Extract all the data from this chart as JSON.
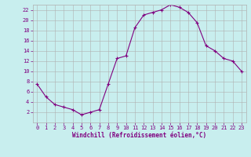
{
  "x": [
    0,
    1,
    2,
    3,
    4,
    5,
    6,
    7,
    8,
    9,
    10,
    11,
    12,
    13,
    14,
    15,
    16,
    17,
    18,
    19,
    20,
    21,
    22,
    23
  ],
  "y": [
    7.5,
    5.0,
    3.5,
    3.0,
    2.5,
    1.5,
    2.0,
    2.5,
    7.5,
    12.5,
    13.0,
    18.5,
    21.0,
    21.5,
    22.0,
    23.0,
    22.5,
    21.5,
    19.5,
    15.0,
    14.0,
    12.5,
    12.0,
    10.0
  ],
  "line_color": "#800080",
  "marker": "+",
  "marker_size": 3,
  "bg_color": "#c8eeee",
  "grid_color": "#b0b0b0",
  "xlabel": "Windchill (Refroidissement éolien,°C)",
  "xlim": [
    -0.5,
    23.5
  ],
  "ylim": [
    0,
    23
  ],
  "yticks": [
    2,
    4,
    6,
    8,
    10,
    12,
    14,
    16,
    18,
    20,
    22
  ],
  "xticks": [
    0,
    1,
    2,
    3,
    4,
    5,
    6,
    7,
    8,
    9,
    10,
    11,
    12,
    13,
    14,
    15,
    16,
    17,
    18,
    19,
    20,
    21,
    22,
    23
  ],
  "tick_color": "#800080",
  "label_color": "#800080",
  "tick_fontsize": 5,
  "xlabel_fontsize": 5.5,
  "linewidth": 0.8,
  "markeredgewidth": 0.8
}
